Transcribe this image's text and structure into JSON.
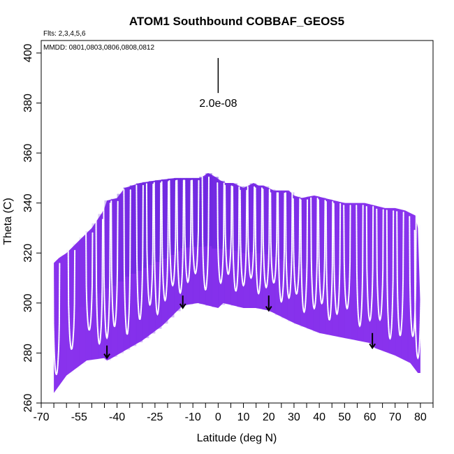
{
  "chart_data": {
    "type": "area",
    "title": "ATOM1 Southbound COBBAF_GEOS5",
    "flights_note": "Flts: 2,3,4,5,6",
    "dates_note": "MMDD: 0801,0803,0806,0808,0812",
    "xlabel": "Latitude (deg N)",
    "ylabel": "Theta (C)",
    "xlim": [
      -70,
      85
    ],
    "ylim": [
      260,
      405
    ],
    "x_ticks": [
      -70,
      -55,
      -40,
      -25,
      -10,
      0,
      10,
      20,
      30,
      40,
      50,
      60,
      70,
      80
    ],
    "x_tick_labels": [
      "-70",
      "-55",
      "-40",
      "-25",
      "-10",
      "0",
      "10",
      "20",
      "30",
      "40",
      "50",
      "60",
      "70",
      "80"
    ],
    "x_minor_ticks": [
      -65,
      -60,
      -50,
      -45,
      -35,
      -30,
      -20,
      -15,
      -5,
      5,
      15,
      25,
      35,
      45,
      55,
      65,
      75,
      85
    ],
    "y_ticks": [
      260,
      280,
      300,
      320,
      340,
      360,
      380,
      400
    ],
    "y_tick_labels": [
      "260",
      "280",
      "300",
      "320",
      "340",
      "360",
      "380",
      "400"
    ],
    "scale_bar": {
      "label": "2.0e-08",
      "x": 0,
      "y_top": 398,
      "y_bottom": 384
    },
    "colors": {
      "field_light": "#8a33ee",
      "field_mid": "#7a2be6",
      "field_dark": "#5e22d8",
      "profiles": "#ffffff",
      "frame": "#000000"
    },
    "lower_boundary": {
      "x": [
        -65,
        -60,
        -52,
        -45,
        -44,
        -42,
        -30,
        -22,
        -14,
        -8,
        0,
        2,
        6,
        10,
        15,
        20,
        30,
        40,
        50,
        60,
        62,
        70,
        76,
        79,
        80
      ],
      "y": [
        264,
        271,
        277,
        278,
        277,
        278,
        285,
        291,
        299,
        300,
        298,
        300,
        299,
        298,
        298,
        297,
        292,
        288,
        286,
        284,
        282,
        279,
        276,
        272,
        272
      ]
    },
    "upper_boundary": {
      "x": [
        -65,
        -63,
        -60,
        -58,
        -56,
        -54,
        -52,
        -50,
        -48,
        -46,
        -45,
        -44,
        -40,
        -37,
        -31,
        -25,
        -17,
        -13,
        -7,
        -4,
        -2,
        1,
        3,
        6,
        8,
        10,
        12,
        14,
        16,
        18,
        20,
        22,
        24,
        26,
        28,
        30,
        33,
        38,
        42,
        46,
        50,
        54,
        58,
        62,
        66,
        70,
        74,
        76,
        78,
        79,
        80
      ],
      "y": [
        316,
        318,
        320,
        322,
        324,
        326,
        328,
        330,
        333,
        336,
        338,
        341,
        342,
        346,
        348,
        349,
        350,
        350,
        350,
        352,
        351,
        349,
        348,
        348,
        347,
        346,
        347,
        348,
        347,
        347,
        346,
        345,
        345,
        345,
        345,
        343,
        342,
        343,
        342,
        341,
        340,
        340,
        340,
        339,
        338,
        338,
        337,
        336,
        335,
        330,
        298
      ]
    },
    "profile_centers": [
      -64,
      -58,
      -51,
      -47,
      -44,
      -41,
      -36,
      -31,
      -27,
      -24,
      -21,
      -18,
      -15,
      -12,
      -9,
      -5,
      1,
      4,
      7,
      10,
      13,
      16,
      19,
      22,
      25,
      28,
      31,
      34,
      38,
      41,
      44,
      47,
      51,
      56,
      60,
      64,
      68,
      72,
      77,
      79
    ],
    "arrows": [
      {
        "x": -44,
        "y_top": 283,
        "y_tip": 278
      },
      {
        "x": -14,
        "y_top": 303,
        "y_tip": 298
      },
      {
        "x": 20,
        "y_top": 303,
        "y_tip": 297
      },
      {
        "x": 61,
        "y_top": 288,
        "y_tip": 282
      }
    ]
  }
}
